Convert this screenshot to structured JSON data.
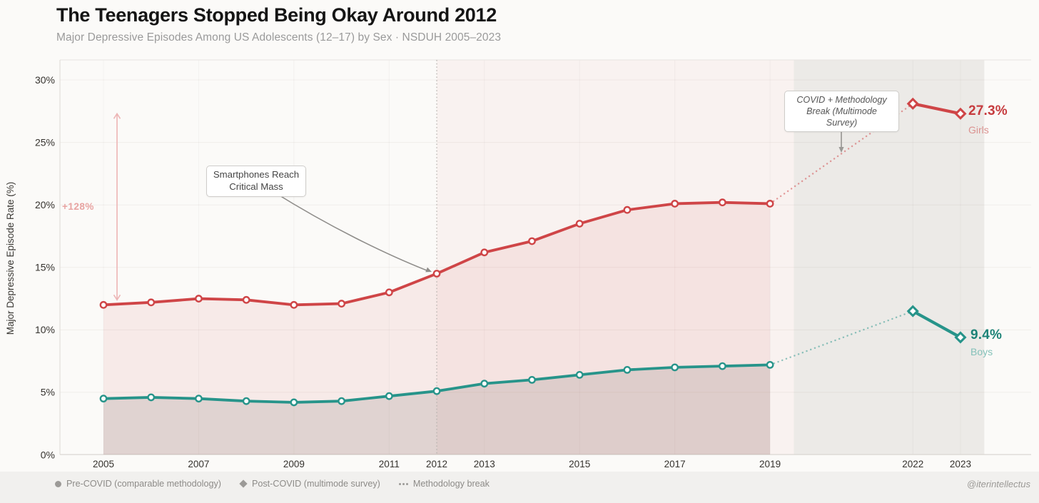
{
  "header": {
    "title": "The Teenagers Stopped Being Okay Around 2012",
    "subtitle": "Major Depressive Episodes Among US Adolescents (12–17) by Sex · NSDUH 2005–2023"
  },
  "chart_data": {
    "type": "line",
    "title": "The Teenagers Stopped Being Okay Around 2012",
    "subtitle": "Major Depressive Episodes Among US Adolescents (12–17) by Sex · NSDUH 2005–2023",
    "xlabel": "",
    "ylabel": "Major Depressive Episode Rate (%)",
    "ylim": [
      0,
      31.6
    ],
    "grid": true,
    "legend_position": "bottom",
    "y_ticks": [
      0,
      5,
      10,
      15,
      20,
      25,
      30
    ],
    "y_tick_labels": [
      "0%",
      "5%",
      "10%",
      "15%",
      "20%",
      "25%",
      "30%"
    ],
    "x_tick_years": [
      2005,
      2007,
      2009,
      2011,
      2012,
      2013,
      2015,
      2017,
      2019,
      2022,
      2023
    ],
    "x_grid_years": [
      2005,
      2007,
      2009,
      2011,
      2013,
      2015,
      2017,
      2019,
      2022,
      2023
    ],
    "break_line_year": 2012,
    "bands": [
      {
        "from_year": 2012,
        "to_year": 2019.5,
        "color": "rgba(207,69,72,0.045)",
        "label": "post-2012 era"
      },
      {
        "from_year": 2019.5,
        "to_year": 2023.5,
        "color": "rgba(110,102,92,0.10)",
        "label": "post-COVID era"
      }
    ],
    "series": [
      {
        "name": "Girls",
        "color": "#cf4547",
        "fill": "rgba(207,69,72,0.085)",
        "pre_years": [
          2005,
          2006,
          2007,
          2008,
          2009,
          2010,
          2011,
          2012,
          2013,
          2014,
          2015,
          2016,
          2017,
          2018,
          2019
        ],
        "pre_values": [
          12.0,
          12.2,
          12.5,
          12.4,
          12.0,
          12.1,
          13.0,
          14.5,
          16.2,
          17.1,
          18.5,
          19.6,
          20.1,
          20.2,
          20.1
        ],
        "post_years": [
          2022,
          2023
        ],
        "post_values": [
          28.1,
          27.3
        ]
      },
      {
        "name": "Boys",
        "color": "#27948a",
        "fill": "rgba(110,102,92,0.17)",
        "pre_years": [
          2005,
          2006,
          2007,
          2008,
          2009,
          2010,
          2011,
          2012,
          2013,
          2014,
          2015,
          2016,
          2017,
          2018,
          2019
        ],
        "pre_values": [
          4.5,
          4.6,
          4.5,
          4.3,
          4.2,
          4.3,
          4.7,
          5.1,
          5.7,
          6.0,
          6.4,
          6.8,
          7.0,
          7.1,
          7.2
        ],
        "post_years": [
          2022,
          2023
        ],
        "post_values": [
          11.5,
          9.4
        ]
      }
    ]
  },
  "annotations": {
    "smartphones": {
      "line1": "Smartphones Reach",
      "line2": "Critical Mass"
    },
    "covid": {
      "line1": "COVID + Methodology",
      "line2": "Break (Multimode Survey)"
    },
    "pct_change": "+128%"
  },
  "end_labels": {
    "girls": {
      "value": "27.3%",
      "name": "Girls"
    },
    "boys": {
      "value": "9.4%",
      "name": "Boys"
    }
  },
  "legend": {
    "items": [
      {
        "marker": "circle",
        "label": "Pre-COVID (comparable methodology)"
      },
      {
        "marker": "diamond",
        "label": "Post-COVID (multimode survey)"
      },
      {
        "marker": "dots",
        "label": "Methodology break"
      }
    ]
  },
  "footer": {
    "watermark": "@iterintellectus"
  }
}
